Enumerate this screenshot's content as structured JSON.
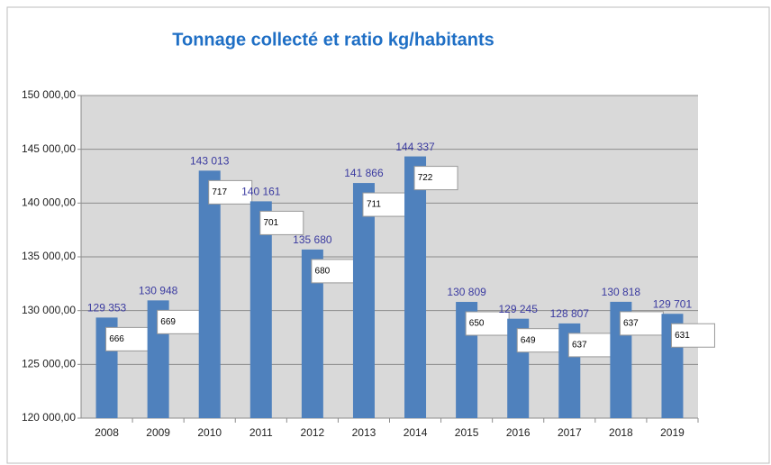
{
  "chart_data": {
    "type": "bar",
    "title": "Tonnage collecté et ratio kg/habitants",
    "categories": [
      "2008",
      "2009",
      "2010",
      "2011",
      "2012",
      "2013",
      "2014",
      "2015",
      "2016",
      "2017",
      "2018",
      "2019"
    ],
    "values": [
      129353,
      130948,
      143013,
      140161,
      135680,
      141866,
      144337,
      130809,
      129245,
      128807,
      130818,
      129701
    ],
    "value_labels": [
      "129 353",
      "130 948",
      "143 013",
      "140 161",
      "135 680",
      "141 866",
      "144 337",
      "130 809",
      "129 245",
      "128 807",
      "130 818",
      "129 701"
    ],
    "ratios": [
      666,
      669,
      717,
      701,
      680,
      711,
      722,
      650,
      649,
      637,
      637,
      631
    ],
    "color": "#4f81bd",
    "ylim": [
      120000,
      150000
    ],
    "yticks": [
      {
        "value": 120000,
        "label": "120 000,00"
      },
      {
        "value": 125000,
        "label": "125 000,00"
      },
      {
        "value": 130000,
        "label": "130 000,00"
      },
      {
        "value": 135000,
        "label": "135 000,00"
      },
      {
        "value": 140000,
        "label": "140 000,00"
      },
      {
        "value": 145000,
        "label": "145 000,00"
      },
      {
        "value": 150000,
        "label": "150 000,00"
      }
    ],
    "grid": true
  }
}
